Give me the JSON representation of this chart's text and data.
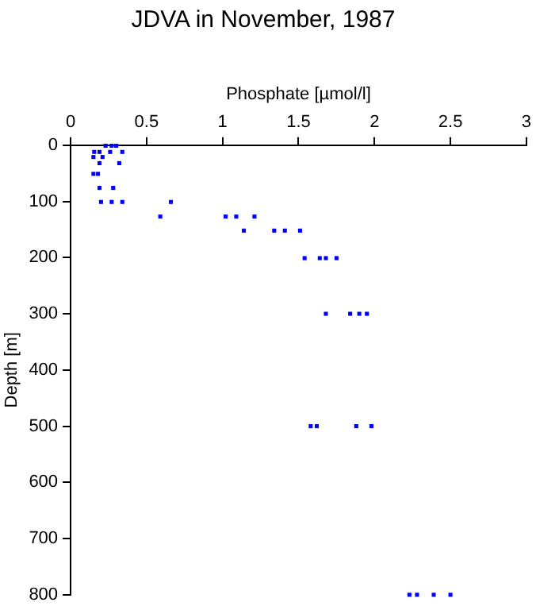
{
  "chart_data": {
    "type": "scatter",
    "title": "JDVA in November, 1987",
    "xlabel": "Phosphate [µmol/l]",
    "ylabel": "Depth [m]",
    "x": [
      0.23,
      0.27,
      0.3,
      0.155,
      0.19,
      0.26,
      0.34,
      0.15,
      0.21,
      0.19,
      0.32,
      0.15,
      0.18,
      0.19,
      0.28,
      0.2,
      0.27,
      0.34,
      0.66,
      0.59,
      1.02,
      1.09,
      1.21,
      1.14,
      1.34,
      1.41,
      1.51,
      1.54,
      1.64,
      1.68,
      1.75,
      1.68,
      1.84,
      1.9,
      1.95,
      1.58,
      1.62,
      1.88,
      1.98,
      2.23,
      2.28,
      2.39,
      2.5
    ],
    "series": [
      {
        "color": "#0000ff",
        "values": [
          1,
          1,
          1,
          12,
          12,
          12,
          12,
          21,
          21,
          32,
          32,
          51,
          51,
          76,
          76,
          101,
          101,
          101,
          101,
          127,
          127,
          127,
          127,
          152,
          152,
          152,
          152,
          201,
          201,
          201,
          201,
          300,
          300,
          300,
          300,
          500,
          500,
          500,
          500,
          800,
          800,
          800,
          800
        ]
      }
    ],
    "xlim": [
      0,
      3
    ],
    "xticks": [
      0,
      0.5,
      1,
      1.5,
      2,
      2.5,
      3
    ],
    "ylim": [
      800,
      0
    ],
    "yticks": [
      0,
      100,
      200,
      300,
      400,
      500,
      600,
      700,
      800
    ],
    "grid": false,
    "legend": false,
    "marker": "square"
  }
}
